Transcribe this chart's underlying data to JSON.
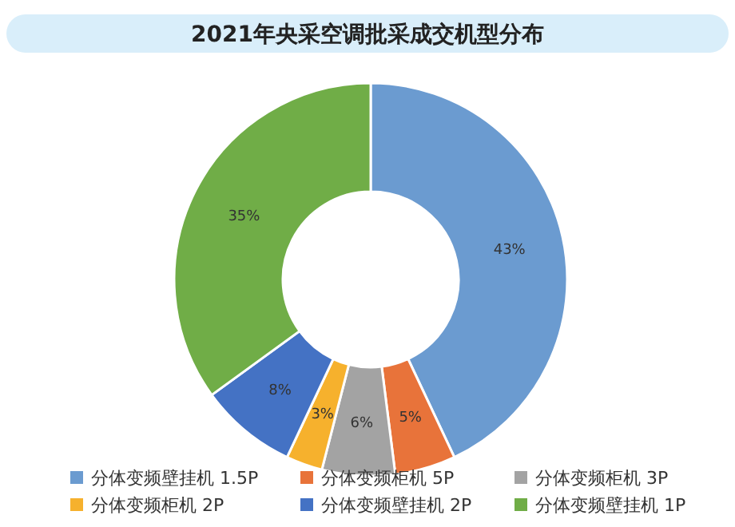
{
  "chart_data": {
    "type": "donut",
    "title": "2021年央采空调批采成交机型分布",
    "categories": [
      "分体变频壁挂机 1.5P",
      "分体变频柜机 5P",
      "分体变频柜机 3P",
      "分体变频柜机 2P",
      "分体变频壁挂机 2P",
      "分体变频壁挂机 1P"
    ],
    "values": [
      43,
      5,
      6,
      3,
      8,
      35
    ],
    "colors": [
      "#6b9bd0",
      "#e8733a",
      "#a3a3a3",
      "#f6b12d",
      "#4472c4",
      "#70ad47"
    ],
    "value_labels": [
      "43%",
      "5%",
      "6%",
      "3%",
      "8%",
      "35%"
    ],
    "legend": "bottom"
  }
}
